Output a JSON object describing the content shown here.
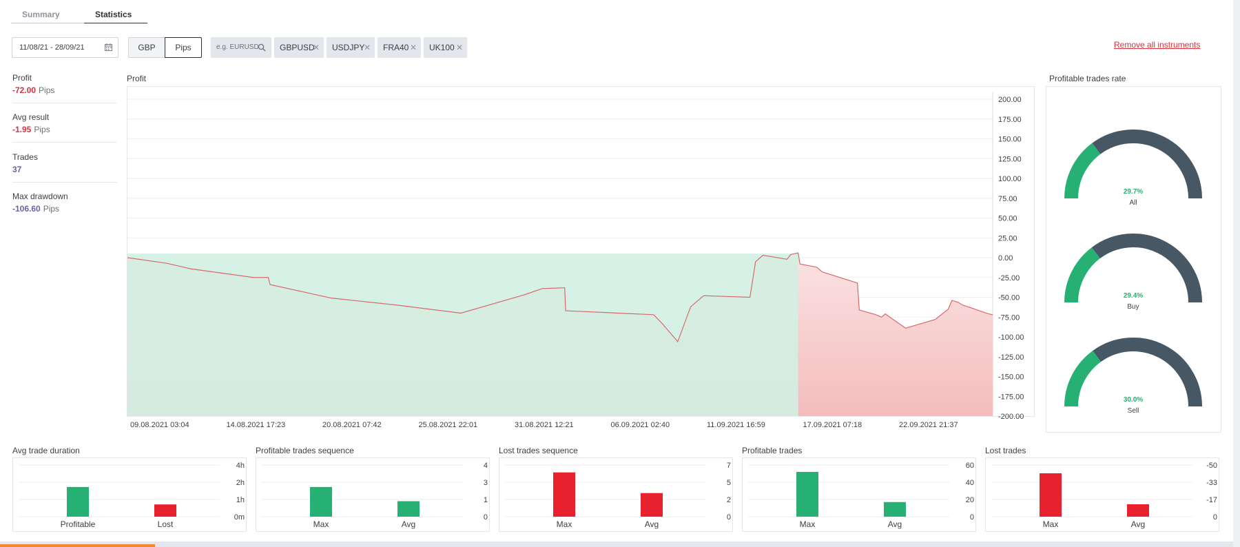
{
  "tabs": [
    {
      "label": "Summary",
      "active": false
    },
    {
      "label": "Statistics",
      "active": true
    }
  ],
  "toolbar": {
    "date_range": "11/08/21 - 28/09/21",
    "currency_options": [
      "GBP",
      "Pips"
    ],
    "selected_currency": "Pips",
    "search_placeholder": "e.g. EURUSD",
    "instruments": [
      "GBPUSD",
      "USDJPY",
      "FRA40",
      "UK100"
    ],
    "remove_all_label": "Remove all instruments"
  },
  "stats": {
    "profit": {
      "label": "Profit",
      "value": "-72.00",
      "unit": "Pips"
    },
    "avg_result": {
      "label": "Avg result",
      "value": "-1.95",
      "unit": "Pips"
    },
    "trades": {
      "label": "Trades",
      "value": "37"
    },
    "max_drawdown": {
      "label": "Max drawdown",
      "value": "-106.60",
      "unit": "Pips"
    }
  },
  "colors": {
    "negative": "#d8323c",
    "positive": "#26b073",
    "gauge_remainder": "#475763",
    "loss_area": "#f6c9c9",
    "profit_area": "#d2efe2",
    "bar_loss": "#e8212e"
  },
  "chart_data": [
    {
      "type": "area",
      "title": "Profit",
      "ylim": [
        -200,
        200
      ],
      "y_ticks": [
        "200.00",
        "175.00",
        "150.00",
        "125.00",
        "100.00",
        "75.00",
        "50.00",
        "25.00",
        "0.00",
        "-25.00",
        "-50.00",
        "-75.00",
        "-100.00",
        "-125.00",
        "-150.00",
        "-175.00",
        "-200.00"
      ],
      "x_ticks": [
        "09.08.2021 03:04",
        "14.08.2021 17:23",
        "20.08.2021 07:42",
        "25.08.2021 22:01",
        "31.08.2021 12:21",
        "06.09.2021 02:40",
        "11.09.2021 16:59",
        "17.09.2021 07:18",
        "22.09.2021 21:37"
      ],
      "x": [
        0.0,
        2.1,
        3.4,
        6.8,
        7.6,
        7.7,
        11.0,
        14.6,
        18.0,
        21.4,
        22.4,
        23.6,
        23.65,
        28.4,
        28.9,
        29.0,
        29.7,
        30.4,
        31.1,
        33.6,
        33.9,
        34.3,
        35.6,
        35.8,
        36.2,
        36.3,
        37.2,
        37.5,
        39.4,
        39.5,
        40.4,
        40.7,
        40.9,
        42.0,
        43.6,
        44.3,
        44.5,
        44.8,
        45.1,
        45.5,
        46.1,
        46.5,
        46.7
      ],
      "y": [
        0,
        -7,
        -14,
        -25,
        -25,
        -34,
        -51,
        -60,
        -70,
        -47,
        -39,
        -38,
        -67,
        -72,
        -84,
        -87,
        -106,
        -62,
        -48,
        -50,
        -5,
        3,
        -2,
        4,
        6,
        -8,
        -12,
        -18,
        -32,
        -66,
        -72,
        -75,
        -71,
        -89,
        -78,
        -65,
        -54,
        -56,
        -60,
        -63,
        -68,
        -71,
        -72
      ]
    },
    {
      "type": "pie",
      "title": "Profitable trades rate",
      "gauges": [
        {
          "label": "All",
          "value_text": "29.7%",
          "value": 29.7
        },
        {
          "label": "Buy",
          "value_text": "29.4%",
          "value": 29.4
        },
        {
          "label": "Sell",
          "value_text": "30.0%",
          "value": 30.0
        }
      ]
    },
    {
      "type": "bar",
      "title": "Avg trade duration",
      "categories": [
        "Profitable",
        "Lost"
      ],
      "values": [
        2.3,
        0.95
      ],
      "y_ticks": [
        "4h",
        "2h",
        "1h",
        "0m"
      ],
      "ylim": [
        0,
        4
      ]
    },
    {
      "type": "bar",
      "title": "Profitable trades sequence",
      "categories": [
        "Max",
        "Avg"
      ],
      "values": [
        2.3,
        1.2
      ],
      "y_ticks": [
        "4",
        "3",
        "1",
        "0"
      ],
      "ylim": [
        0,
        4
      ]
    },
    {
      "type": "bar",
      "title": "Lost trades sequence",
      "categories": [
        "Max",
        "Avg"
      ],
      "values": [
        6,
        3.2
      ],
      "y_ticks": [
        "7",
        "5",
        "2",
        "0"
      ],
      "ylim": [
        0,
        7
      ]
    },
    {
      "type": "bar",
      "title": "Profitable trades",
      "categories": [
        "Max",
        "Avg"
      ],
      "values": [
        52,
        17
      ],
      "y_ticks": [
        "60",
        "40",
        "20",
        "0"
      ],
      "ylim": [
        0,
        60
      ]
    },
    {
      "type": "bar",
      "title": "Lost trades",
      "categories": [
        "Max",
        "Avg"
      ],
      "values": [
        -42,
        -12
      ],
      "y_ticks": [
        "-50",
        "-33",
        "-17",
        "0"
      ],
      "ylim": [
        0,
        -50
      ]
    }
  ]
}
